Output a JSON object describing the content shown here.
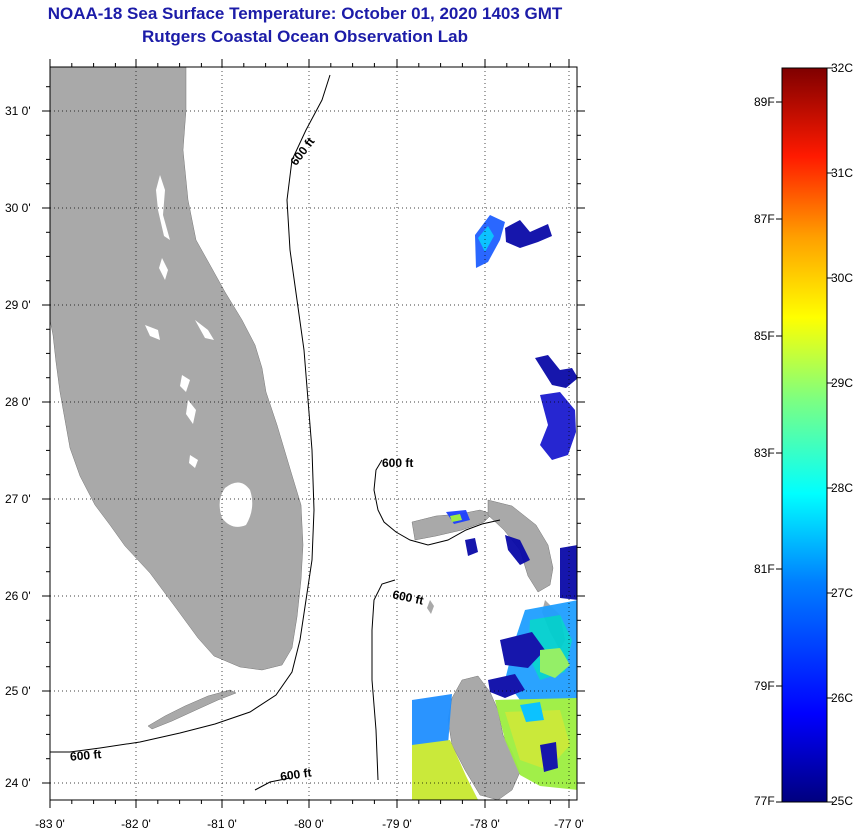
{
  "title": "NOAA-18 Sea Surface Temperature:  October 01, 2020 1403 GMT",
  "subtitle": "Rutgers Coastal Ocean Observation Lab",
  "map": {
    "lat_labels": [
      "31 0'",
      "30 0'",
      "29 0'",
      "28 0'",
      "27 0'",
      "26 0'",
      "25 0'",
      "24 0'"
    ],
    "lon_labels": [
      "-83 0'",
      "-82 0'",
      "-81 0'",
      "-80 0'",
      "-79 0'",
      "-78 0'",
      "-77 0'"
    ],
    "contour_label": "600 ft",
    "contour_labels": [
      "600 ft",
      "600 ft",
      "600 ft",
      "600 ft",
      "600 ft"
    ],
    "land_color": "#a9a9a9"
  },
  "colorbar": {
    "celsius_labels": [
      "32C",
      "31C",
      "30C",
      "29C",
      "28C",
      "27C",
      "26C",
      "25C"
    ],
    "fahrenheit_labels": [
      "89F",
      "87F",
      "85F",
      "83F",
      "81F",
      "79F",
      "77F"
    ],
    "colors": [
      "#00007f",
      "#0000ff",
      "#007fff",
      "#00ffff",
      "#7fff7f",
      "#ffff00",
      "#ff7f00",
      "#ff0000",
      "#7f0000"
    ]
  }
}
